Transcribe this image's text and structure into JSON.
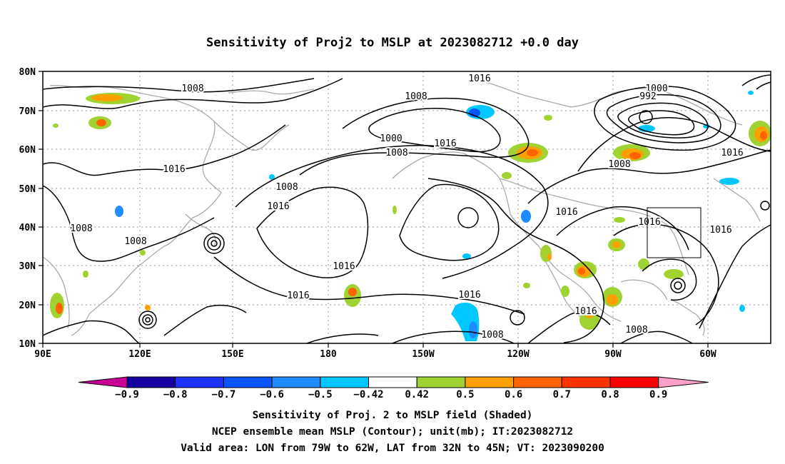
{
  "title": "Sensitivity of Proj2 to MSLP at 2023082712 +0.0 day",
  "map": {
    "lat_labels": [
      "80N",
      "70N",
      "60N",
      "50N",
      "40N",
      "30N",
      "20N",
      "10N"
    ],
    "lon_labels": [
      "90E",
      "120E",
      "150E",
      "180",
      "150W",
      "120W",
      "90W",
      "60W"
    ],
    "contour_labels": [
      {
        "text": "1008"
      },
      {
        "text": "1016"
      },
      {
        "text": "1008"
      },
      {
        "text": "1000"
      },
      {
        "text": "1008"
      },
      {
        "text": "1016"
      },
      {
        "text": "1016"
      },
      {
        "text": "1000"
      },
      {
        "text": "992"
      },
      {
        "text": "1016"
      },
      {
        "text": "1008"
      },
      {
        "text": "1016"
      },
      {
        "text": "1008"
      },
      {
        "text": "1016"
      },
      {
        "text": "1008"
      },
      {
        "text": "1016"
      },
      {
        "text": "1016"
      },
      {
        "text": "1008"
      },
      {
        "text": "1016"
      },
      {
        "text": "1016"
      },
      {
        "text": "1016"
      },
      {
        "text": "1016"
      },
      {
        "text": "1008"
      },
      {
        "text": "1008"
      }
    ],
    "valid_box": {
      "lon_from": "79W",
      "lon_to": "62W",
      "lat_from": "32N",
      "lat_to": "45N"
    }
  },
  "colorbar": {
    "labels": [
      "-0.9",
      "-0.8",
      "-0.7",
      "-0.6",
      "-0.5",
      "-0.42",
      "0.42",
      "0.5",
      "0.6",
      "0.7",
      "0.8",
      "0.9"
    ],
    "colors": [
      "#1400a0",
      "#1e32ff",
      "#0a55ff",
      "#1e8cff",
      "#00c8ff",
      "#ffffff",
      "#a0d232",
      "#ffa000",
      "#ff6400",
      "#ff3200",
      "#ff0000"
    ],
    "left_tri": "#c80096",
    "right_tri": "#ffa0c8"
  },
  "captions": [
    "Sensitivity of Proj. 2 to MSLP field (Shaded)",
    "NCEP ensemble mean MSLP (Contour); unit(mb); IT:2023082712",
    "Valid area: LON from 79W to 62W, LAT from 32N to 45N; VT: 2023090200"
  ]
}
